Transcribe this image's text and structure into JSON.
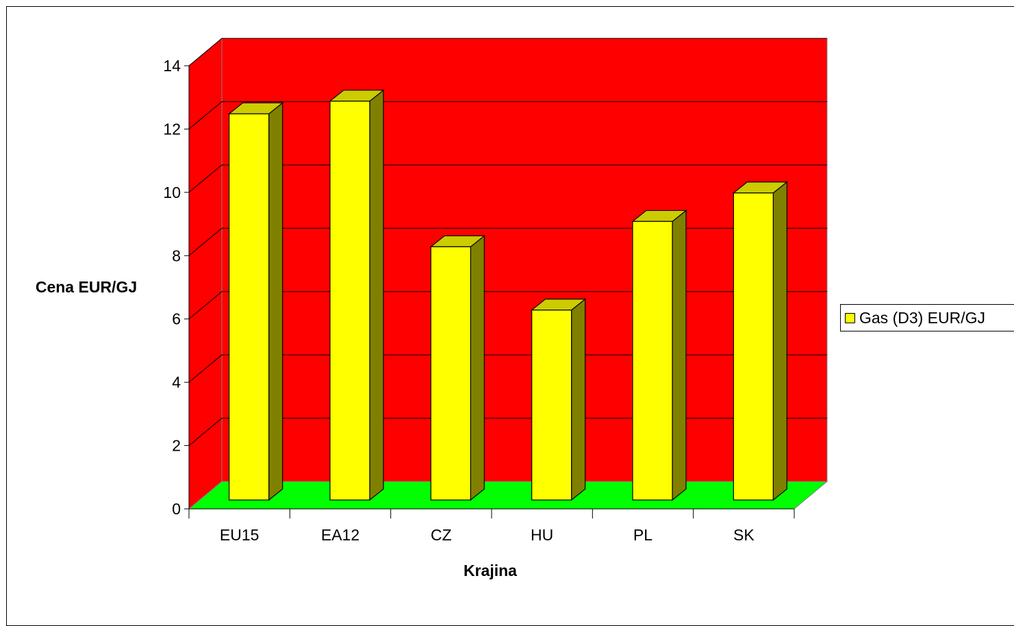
{
  "chart_data": {
    "type": "bar",
    "categories": [
      "EU15",
      "EA12",
      "CZ",
      "HU",
      "PL",
      "SK"
    ],
    "series": [
      {
        "name": "Gas (D3) EUR/GJ",
        "values": [
          12.2,
          12.6,
          8.0,
          6.0,
          8.8,
          9.7
        ]
      }
    ],
    "xlabel": "Krajina",
    "ylabel": "Cena EUR/GJ",
    "ylim": [
      0,
      14
    ],
    "yticks": [
      "0",
      "2",
      "4",
      "6",
      "8",
      "10",
      "12",
      "14"
    ],
    "grid": true,
    "legend_position": "right",
    "style": "3d"
  },
  "colors": {
    "wall": "#ff0000",
    "floor": "#00ff00",
    "bar_front": "#ffff00",
    "bar_side": "#808000",
    "bar_top": "#cccc00"
  }
}
